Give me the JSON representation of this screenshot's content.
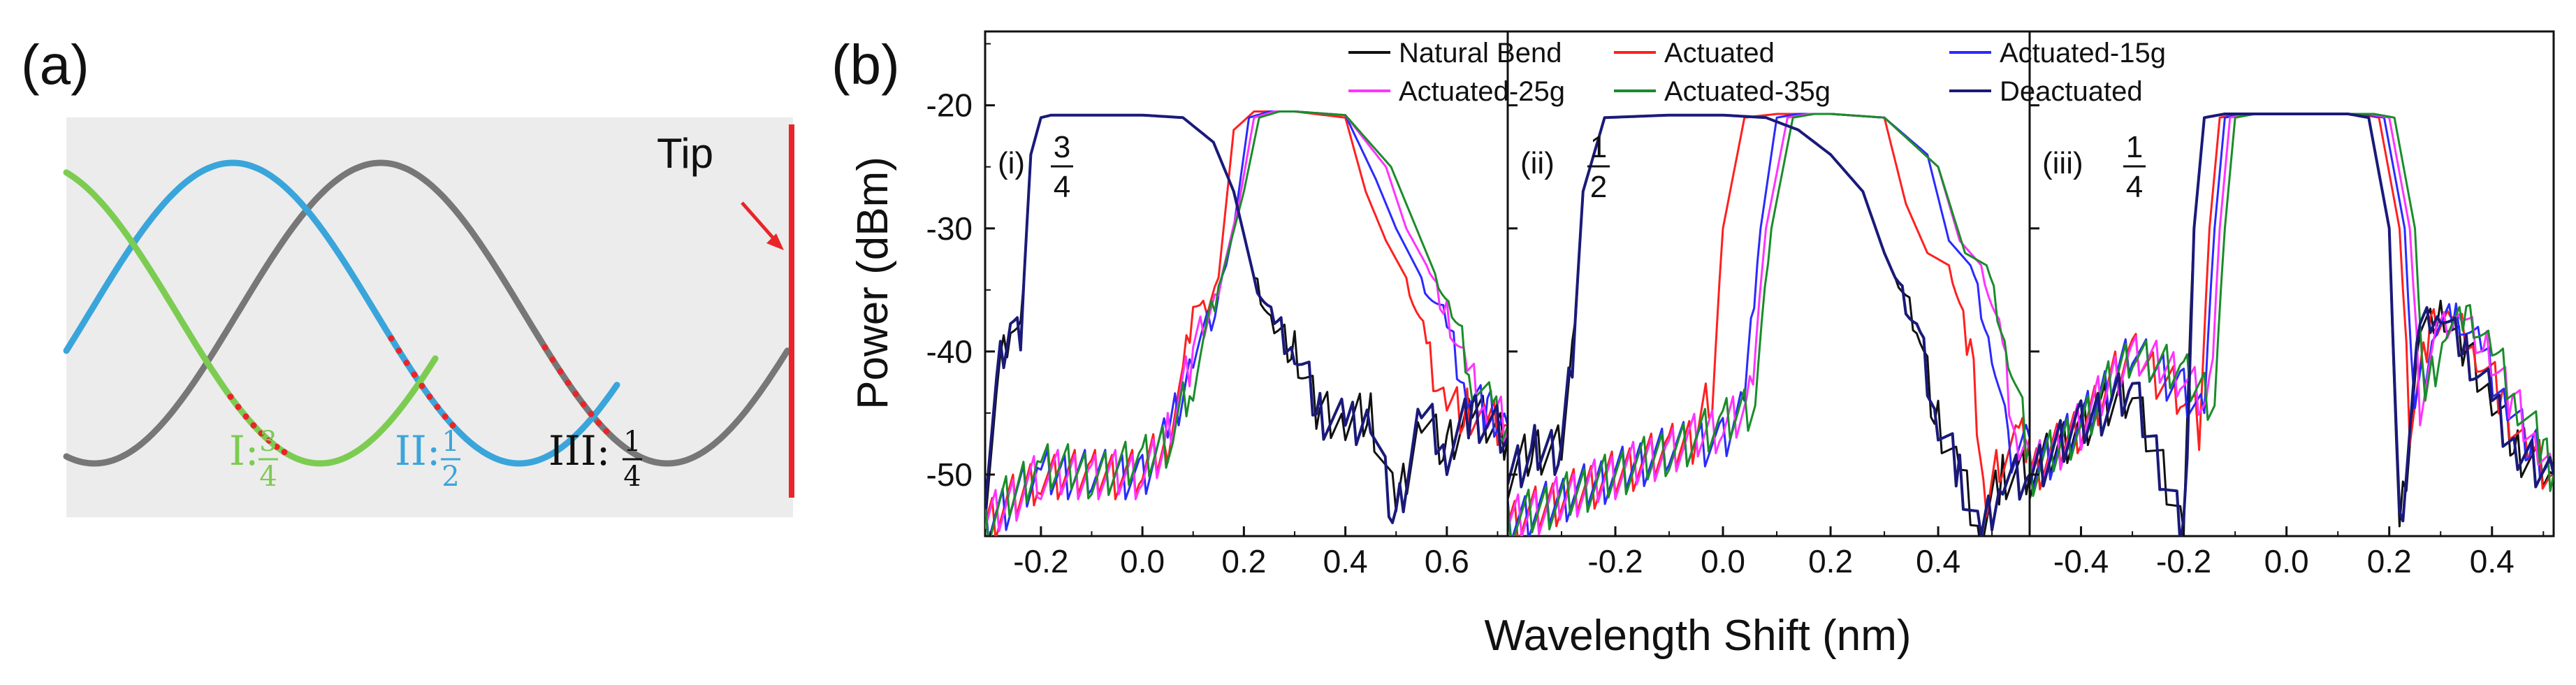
{
  "panel_a": {
    "label": "(a)",
    "tip_label": "Tip",
    "curves": [
      {
        "name": "I",
        "numerator": "3",
        "denominator": "4",
        "color": "#7ccc52"
      },
      {
        "name": "II",
        "numerator": "1",
        "denominator": "2",
        "color": "#3aa5db"
      },
      {
        "name": "III",
        "numerator": "1",
        "denominator": "4",
        "color": "#777777"
      }
    ],
    "background_color": "#ececec",
    "tip_color": "#e8262a",
    "dot_color": "#e8262a"
  },
  "panel_b": {
    "label": "(b)"
  },
  "chart_data": [
    {
      "type": "line",
      "id": "i",
      "sublabel_prefix": "(i)",
      "fraction": {
        "numerator": "3",
        "denominator": "4"
      },
      "xlabel": "Wavelength Shift (nm)",
      "ylabel": "Power (dBm)",
      "xlim": [
        -0.31,
        0.72
      ],
      "ylim": [
        -55,
        -14
      ],
      "xticks": [
        -0.2,
        0.0,
        0.2,
        0.4,
        0.6
      ],
      "xtick_labels": [
        "-0.2",
        "0.0",
        "0.2",
        "0.4",
        "0.6"
      ],
      "yticks": [
        -50,
        -40,
        -30,
        -20
      ],
      "ytick_labels": [
        "-50",
        "-40",
        "-30",
        "-20"
      ],
      "series": [
        {
          "name": "Natural Bend",
          "x": [
            -0.31,
            -0.28,
            -0.26,
            -0.24,
            -0.22,
            -0.2,
            -0.18,
            -0.1,
            0.0,
            0.08,
            0.14,
            0.18,
            0.22,
            0.26,
            0.3,
            0.35,
            0.4,
            0.45,
            0.5,
            0.55,
            0.6,
            0.65,
            0.72
          ],
          "y": [
            -52,
            -41,
            -38,
            -39,
            -24,
            -21,
            -20.8,
            -20.8,
            -20.8,
            -21,
            -23,
            -27,
            -34,
            -38,
            -40,
            -45,
            -46,
            -45,
            -53,
            -45,
            -48,
            -45,
            -47
          ]
        },
        {
          "name": "Actuated",
          "x": [
            -0.31,
            -0.2,
            -0.1,
            0.0,
            0.05,
            0.08,
            0.1,
            0.12,
            0.15,
            0.18,
            0.22,
            0.3,
            0.4,
            0.44,
            0.48,
            0.52,
            0.56,
            0.6,
            0.64,
            0.68,
            0.72
          ],
          "y": [
            -54,
            -50,
            -50,
            -50,
            -47,
            -42,
            -36,
            -37,
            -34,
            -22,
            -20.5,
            -20.5,
            -21,
            -27,
            -31,
            -34,
            -40,
            -44,
            -45,
            -46,
            -46
          ]
        },
        {
          "name": "Actuated-15g",
          "x": [
            -0.31,
            -0.2,
            -0.1,
            0.0,
            0.05,
            0.1,
            0.15,
            0.18,
            0.21,
            0.25,
            0.3,
            0.4,
            0.46,
            0.5,
            0.55,
            0.6,
            0.64,
            0.68,
            0.72
          ],
          "y": [
            -54,
            -50,
            -50,
            -50,
            -47,
            -40,
            -36,
            -30,
            -21,
            -20.5,
            -20.5,
            -20.8,
            -26,
            -30,
            -34,
            -38,
            -43,
            -45,
            -46
          ]
        },
        {
          "name": "Actuated-25g",
          "x": [
            -0.31,
            -0.2,
            -0.1,
            0.0,
            0.05,
            0.1,
            0.15,
            0.19,
            0.22,
            0.26,
            0.3,
            0.4,
            0.48,
            0.52,
            0.56,
            0.6,
            0.64,
            0.68,
            0.72
          ],
          "y": [
            -54,
            -50,
            -50,
            -50,
            -47,
            -40,
            -35,
            -28,
            -21,
            -20.5,
            -20.5,
            -20.8,
            -25,
            -30,
            -33,
            -37,
            -42,
            -45,
            -46
          ]
        },
        {
          "name": "Actuated-35g",
          "x": [
            -0.31,
            -0.2,
            -0.1,
            0.0,
            0.06,
            0.1,
            0.15,
            0.2,
            0.23,
            0.27,
            0.3,
            0.4,
            0.49,
            0.53,
            0.57,
            0.61,
            0.65,
            0.69,
            0.72
          ],
          "y": [
            -54,
            -49,
            -50,
            -49,
            -47,
            -42,
            -35,
            -27,
            -21,
            -20.5,
            -20.5,
            -20.8,
            -25,
            -29,
            -33,
            -37,
            -42,
            -45,
            -46
          ]
        },
        {
          "name": "Deactuated",
          "x": [
            -0.31,
            -0.28,
            -0.26,
            -0.24,
            -0.22,
            -0.2,
            -0.18,
            -0.1,
            0.0,
            0.08,
            0.14,
            0.18,
            0.22,
            0.26,
            0.3,
            0.35,
            0.4,
            0.45,
            0.5,
            0.55,
            0.6,
            0.65,
            0.72
          ],
          "y": [
            -52,
            -41,
            -38,
            -39,
            -24,
            -21,
            -20.8,
            -20.8,
            -20.8,
            -21,
            -23,
            -27,
            -34,
            -38,
            -40,
            -45,
            -46,
            -45,
            -54,
            -45,
            -48,
            -45,
            -47
          ]
        }
      ]
    },
    {
      "type": "line",
      "id": "ii",
      "sublabel_prefix": "(ii)",
      "fraction": {
        "numerator": "1",
        "denominator": "2"
      },
      "xlabel": "Wavelength Shift (nm)",
      "ylabel": "Power (dBm)",
      "xlim": [
        -0.4,
        0.57
      ],
      "ylim": [
        -55,
        -14
      ],
      "xticks": [
        -0.2,
        0.0,
        0.2,
        0.4
      ],
      "xtick_labels": [
        "-0.2",
        "0.0",
        "0.2",
        "0.4"
      ],
      "yticks": [
        -50,
        -40,
        -30,
        -20
      ],
      "ytick_labels": [
        "-50",
        "-40",
        "-30",
        "-20"
      ],
      "series": [
        {
          "name": "Natural Bend",
          "x": [
            -0.4,
            -0.35,
            -0.3,
            -0.28,
            -0.26,
            -0.22,
            -0.1,
            0.0,
            0.08,
            0.14,
            0.2,
            0.26,
            0.3,
            0.36,
            0.4,
            0.44,
            0.48,
            0.52,
            0.57
          ],
          "y": [
            -50,
            -48,
            -48,
            -41,
            -27,
            -21,
            -20.8,
            -20.8,
            -21,
            -22,
            -24,
            -27,
            -32,
            -38,
            -46,
            -50,
            -55,
            -50,
            -50
          ]
        },
        {
          "name": "Actuated",
          "x": [
            -0.4,
            -0.2,
            -0.1,
            -0.05,
            -0.02,
            0.0,
            0.04,
            0.1,
            0.2,
            0.3,
            0.34,
            0.38,
            0.42,
            0.46,
            0.49,
            0.52,
            0.55,
            0.57
          ],
          "y": [
            -54,
            -50,
            -48,
            -47,
            -43,
            -30,
            -21,
            -20.7,
            -20.7,
            -21,
            -28,
            -32,
            -33,
            -40,
            -53,
            -48,
            -47,
            -47
          ]
        },
        {
          "name": "Actuated-15g",
          "x": [
            -0.4,
            -0.2,
            -0.1,
            0.0,
            0.04,
            0.07,
            0.1,
            0.14,
            0.2,
            0.3,
            0.38,
            0.42,
            0.46,
            0.5,
            0.53,
            0.57
          ],
          "y": [
            -54,
            -50,
            -48,
            -47,
            -44,
            -30,
            -21,
            -20.7,
            -20.7,
            -21,
            -24,
            -31,
            -33,
            -40,
            -48,
            -47
          ]
        },
        {
          "name": "Actuated-25g",
          "x": [
            -0.4,
            -0.2,
            -0.1,
            0.0,
            0.05,
            0.08,
            0.12,
            0.16,
            0.2,
            0.3,
            0.4,
            0.44,
            0.48,
            0.52,
            0.55,
            0.57
          ],
          "y": [
            -54,
            -50,
            -48,
            -46,
            -44,
            -30,
            -21,
            -20.7,
            -20.7,
            -21,
            -25,
            -31,
            -33,
            -40,
            -48,
            -48
          ]
        },
        {
          "name": "Actuated-35g",
          "x": [
            -0.4,
            -0.2,
            -0.1,
            0.0,
            0.06,
            0.09,
            0.13,
            0.17,
            0.2,
            0.3,
            0.4,
            0.45,
            0.49,
            0.53,
            0.57
          ],
          "y": [
            -54,
            -50,
            -48,
            -46,
            -44,
            -30,
            -21,
            -20.7,
            -20.7,
            -21,
            -25,
            -32,
            -33,
            -40,
            -48
          ]
        },
        {
          "name": "Deactuated",
          "x": [
            -0.4,
            -0.35,
            -0.3,
            -0.28,
            -0.26,
            -0.22,
            -0.1,
            0.0,
            0.08,
            0.14,
            0.2,
            0.26,
            0.3,
            0.36,
            0.4,
            0.44,
            0.48,
            0.52,
            0.57
          ],
          "y": [
            -50,
            -48,
            -48,
            -41,
            -27,
            -21,
            -20.8,
            -20.8,
            -21,
            -22,
            -24,
            -27,
            -32,
            -38,
            -46,
            -50,
            -55,
            -50,
            -50
          ]
        }
      ]
    },
    {
      "type": "line",
      "id": "iii",
      "sublabel_prefix": "(iii)",
      "fraction": {
        "numerator": "1",
        "denominator": "4"
      },
      "xlabel": "Wavelength Shift (nm)",
      "ylabel": "Power (dBm)",
      "xlim": [
        -0.5,
        0.52
      ],
      "ylim": [
        -55,
        -14
      ],
      "xticks": [
        -0.4,
        -0.2,
        0.0,
        0.2,
        0.4
      ],
      "xtick_labels": [
        "-0.4",
        "-0.2",
        "0.0",
        "0.2",
        "0.4"
      ],
      "yticks": [
        -50,
        -40,
        -30,
        -20
      ],
      "ytick_labels": [
        "-50",
        "-40",
        "-30",
        "-20"
      ],
      "series": [
        {
          "name": "Natural Bend",
          "x": [
            -0.5,
            -0.4,
            -0.3,
            -0.24,
            -0.2,
            -0.18,
            -0.16,
            -0.12,
            0.0,
            0.12,
            0.16,
            0.2,
            0.22,
            0.26,
            0.3,
            0.35,
            0.4,
            0.45,
            0.52
          ],
          "y": [
            -50,
            -46,
            -43,
            -50,
            -55,
            -30,
            -21,
            -20.7,
            -20.7,
            -20.7,
            -21,
            -30,
            -55,
            -38,
            -37,
            -40,
            -44,
            -48,
            -50
          ]
        },
        {
          "name": "Actuated",
          "x": [
            -0.5,
            -0.4,
            -0.3,
            -0.2,
            -0.17,
            -0.15,
            -0.13,
            -0.09,
            0.0,
            0.14,
            0.18,
            0.22,
            0.24,
            0.28,
            0.32,
            0.37,
            0.42,
            0.47,
            0.52
          ],
          "y": [
            -50,
            -46,
            -40,
            -44,
            -46,
            -30,
            -21,
            -20.7,
            -20.7,
            -20.7,
            -21,
            -30,
            -46,
            -38,
            -37,
            -40,
            -44,
            -48,
            -50
          ]
        },
        {
          "name": "Actuated-15g",
          "x": [
            -0.5,
            -0.4,
            -0.3,
            -0.2,
            -0.16,
            -0.14,
            -0.12,
            -0.08,
            0.0,
            0.15,
            0.19,
            0.23,
            0.25,
            0.29,
            0.33,
            0.38,
            0.43,
            0.48,
            0.52
          ],
          "y": [
            -50,
            -46,
            -40,
            -43,
            -45,
            -30,
            -21,
            -20.7,
            -20.7,
            -20.7,
            -21,
            -30,
            -45,
            -38,
            -37,
            -40,
            -44,
            -48,
            -50
          ]
        },
        {
          "name": "Actuated-25g",
          "x": [
            -0.5,
            -0.4,
            -0.3,
            -0.2,
            -0.15,
            -0.13,
            -0.11,
            -0.07,
            0.0,
            0.16,
            0.2,
            0.24,
            0.26,
            0.3,
            0.34,
            0.39,
            0.44,
            0.49,
            0.52
          ],
          "y": [
            -50,
            -46,
            -40,
            -42,
            -44,
            -30,
            -21,
            -20.7,
            -20.7,
            -20.7,
            -21,
            -30,
            -44,
            -38,
            -37,
            -40,
            -44,
            -48,
            -50
          ]
        },
        {
          "name": "Actuated-35g",
          "x": [
            -0.5,
            -0.4,
            -0.3,
            -0.2,
            -0.14,
            -0.12,
            -0.1,
            -0.06,
            0.0,
            0.17,
            0.21,
            0.25,
            0.27,
            0.31,
            0.35,
            0.4,
            0.45,
            0.5,
            0.52
          ],
          "y": [
            -50,
            -46,
            -40,
            -42,
            -44,
            -30,
            -21,
            -20.7,
            -20.7,
            -20.7,
            -21,
            -30,
            -44,
            -38,
            -37,
            -40,
            -44,
            -48,
            -50
          ]
        },
        {
          "name": "Deactuated",
          "x": [
            -0.5,
            -0.4,
            -0.3,
            -0.24,
            -0.2,
            -0.18,
            -0.16,
            -0.12,
            0.0,
            0.12,
            0.16,
            0.2,
            0.22,
            0.26,
            0.3,
            0.35,
            0.4,
            0.45,
            0.52
          ],
          "y": [
            -50,
            -46,
            -43,
            -50,
            -55,
            -30,
            -21,
            -20.7,
            -20.7,
            -20.7,
            -21,
            -30,
            -55,
            -38,
            -37,
            -40,
            -44,
            -48,
            -50
          ]
        }
      ]
    }
  ],
  "legend": [
    {
      "label": "Natural Bend",
      "color": "#111111"
    },
    {
      "label": "Actuated",
      "color": "#ff2020"
    },
    {
      "label": "Actuated-15g",
      "color": "#2a2aff"
    },
    {
      "label": "Actuated-25g",
      "color": "#ff33ff"
    },
    {
      "label": "Actuated-35g",
      "color": "#1a8c2a"
    },
    {
      "label": "Deactuated",
      "color": "#1a1a7a"
    }
  ]
}
